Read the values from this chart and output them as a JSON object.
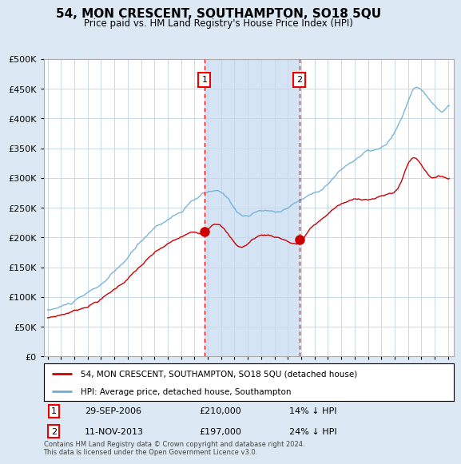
{
  "title": "54, MON CRESCENT, SOUTHAMPTON, SO18 5QU",
  "subtitle": "Price paid vs. HM Land Registry's House Price Index (HPI)",
  "legend_line1": "54, MON CRESCENT, SOUTHAMPTON, SO18 5QU (detached house)",
  "legend_line2": "HPI: Average price, detached house, Southampton",
  "annotation1_date": "29-SEP-2006",
  "annotation1_price": "£210,000",
  "annotation1_pct": "14% ↓ HPI",
  "annotation2_date": "11-NOV-2013",
  "annotation2_price": "£197,000",
  "annotation2_pct": "24% ↓ HPI",
  "footnote": "Contains HM Land Registry data © Crown copyright and database right 2024.\nThis data is licensed under the Open Government Licence v3.0.",
  "vline1_x": 2006.75,
  "vline2_x": 2013.85,
  "sale1_x": 2006.75,
  "sale1_y": 210000,
  "sale2_x": 2013.85,
  "sale2_y": 197000,
  "ylim": [
    0,
    500000
  ],
  "xlim_start": 1994.7,
  "xlim_end": 2025.4,
  "background_color": "#dce9f5",
  "plot_bg_color": "#ffffff",
  "hpi_color": "#6baed6",
  "price_color": "#cc0000",
  "vline_color": "#ee0000",
  "grid_color": "#c8d8e8",
  "vspan_color": "#d4e4f4"
}
